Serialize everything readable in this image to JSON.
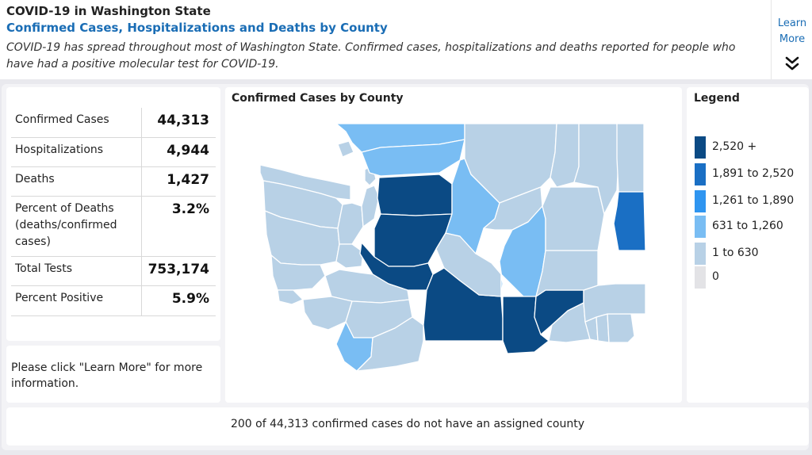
{
  "header": {
    "title": "COVID-19 in Washington State",
    "subtitle": "Confirmed Cases, Hospitalizations and Deaths by County",
    "description": "COVID-19 has spread throughout most of Washington State. Confirmed cases, hospitalizations and deaths reported for people who have had a positive molecular test for COVID-19.",
    "learn_more_line1": "Learn",
    "learn_more_line2": "More",
    "expand_icon": "double-chevron-down-icon"
  },
  "stats": [
    {
      "label": "Confirmed Cases",
      "value": "44,313"
    },
    {
      "label": "Hospitalizations",
      "value": "4,944"
    },
    {
      "label": "Deaths",
      "value": "1,427"
    },
    {
      "label": "Percent of Deaths (deaths/confirmed cases)",
      "value": "3.2%"
    },
    {
      "label": "Total Tests",
      "value": "753,174"
    },
    {
      "label": "Percent Positive",
      "value": "5.9%"
    }
  ],
  "note": "Please click \"Learn More\" for more information.",
  "map": {
    "title": "Confirmed Cases by County"
  },
  "legend": {
    "title": "Legend",
    "items": [
      {
        "label": "2,520 +",
        "color": "#0b4a84"
      },
      {
        "label": "1,891 to 2,520",
        "color": "#1a6fc4"
      },
      {
        "label": "1,261 to 1,890",
        "color": "#2f95f0"
      },
      {
        "label": "631 to 1,260",
        "color": "#79bdf3"
      },
      {
        "label": "1 to 630",
        "color": "#b8d1e6"
      },
      {
        "label": "0",
        "color": "#e3e3e6"
      }
    ]
  },
  "footer": {
    "text": "200 of 44,313 confirmed cases do not have an assigned county"
  },
  "colors": {
    "accent": "#1a6db5",
    "panel": "#ffffff",
    "background": "#f3f3f6"
  }
}
